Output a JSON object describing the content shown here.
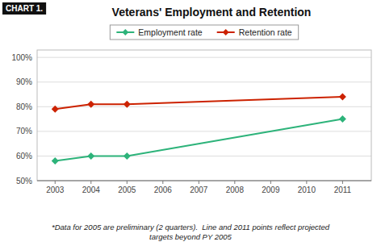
{
  "chart_data": {
    "type": "line",
    "title": "Veterans' Employment and Retention",
    "annotations": [
      "CHART 1.",
      "*Data for 2005 are preliminary (2 quarters).  Line and 2011 points reflect projected\ntargets beyond PY 2005"
    ],
    "x": [
      2003,
      2004,
      2005,
      2011
    ],
    "series": [
      {
        "name": "Employment rate",
        "color": "#2db37a",
        "marker": "diamond",
        "values": [
          58,
          60,
          60,
          75
        ]
      },
      {
        "name": "Retention rate",
        "color": "#cc2200",
        "marker": "diamond",
        "values": [
          79,
          81,
          81,
          84
        ]
      }
    ],
    "xlim": [
      2002.5,
      2011.8
    ],
    "xticks": [
      2003,
      2004,
      2005,
      2006,
      2007,
      2008,
      2009,
      2010,
      2011
    ],
    "ylim": [
      50,
      103
    ],
    "yticks": [
      {
        "value": 50,
        "label": "50%"
      },
      {
        "value": 60,
        "label": "60%"
      },
      {
        "value": 70,
        "label": "70%"
      },
      {
        "value": 80,
        "label": "80%"
      },
      {
        "value": 90,
        "label": "90%"
      },
      {
        "value": 100,
        "label": "100%"
      }
    ],
    "grid": true,
    "legend": "top"
  }
}
